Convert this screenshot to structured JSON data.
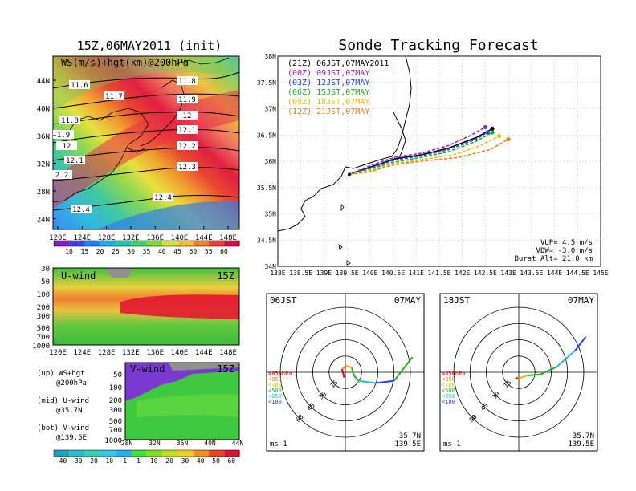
{
  "title_left": "15Z,06MAY2011 (init)",
  "title_right": "Sonde Tracking Forecast",
  "ws_map": {
    "label": "WS(m/s)+hgt(km)@200hPa",
    "lat_labels": [
      "44N",
      "40N",
      "36N",
      "32N",
      "28N",
      "24N"
    ],
    "lon_labels": [
      "120E",
      "124E",
      "128E",
      "132E",
      "136E",
      "140E",
      "144E",
      "148E"
    ],
    "contour_labels": [
      "11.6",
      "11.7",
      "11.8",
      "11.8",
      "11.9",
      "12",
      "12.1",
      "12.2",
      "12.3",
      "12.4",
      "12.3",
      "12.4",
      "1.9",
      "12",
      "12.1",
      "2.2"
    ],
    "colorbar_ticks": [
      "10",
      "15",
      "20",
      "25",
      "30",
      "35",
      "40",
      "45",
      "50",
      "55",
      "60"
    ]
  },
  "u_wind": {
    "label": "U-wind",
    "time": "15Z",
    "y_ticks": [
      "30",
      "50",
      "100",
      "200",
      "300",
      "500",
      "700",
      "1000"
    ],
    "x_ticks": [
      "120E",
      "124E",
      "128E",
      "132E",
      "136E",
      "140E",
      "144E",
      "148E"
    ]
  },
  "v_wind": {
    "label": "V-wind",
    "time": "15Z",
    "y_ticks": [
      "50",
      "100",
      "200",
      "300",
      "500",
      "700",
      "1000"
    ],
    "x_ticks": [
      "28N",
      "32N",
      "36N",
      "40N",
      "44N"
    ]
  },
  "notes": [
    {
      "head": "(up) WS+hgt",
      "sub": "@200hPa"
    },
    {
      "head": "(mid) U-wind",
      "sub": "@35.7N"
    },
    {
      "head": "(bot) V-wind",
      "sub": "@139.5E"
    }
  ],
  "wind_colorbar_ticks": [
    "-40",
    "-30",
    "-20",
    "-10",
    "-1",
    "1",
    "10",
    "20",
    "30",
    "40",
    "50",
    "60"
  ],
  "track": {
    "lat_ticks": [
      "38N",
      "37.5N",
      "37N",
      "36.5N",
      "36N",
      "35.5N",
      "35N",
      "34.5N",
      "34N"
    ],
    "lon_ticks": [
      "138E",
      "138.5E",
      "139E",
      "139.5E",
      "140E",
      "140.5E",
      "141E",
      "141.5E",
      "142E",
      "142.5E",
      "143E",
      "143.5E",
      "144E",
      "144.5E",
      "145E"
    ],
    "legend": [
      {
        "text": "(21Z) 06JST,07MAY2011",
        "color": "#000000"
      },
      {
        "text": "(00Z) 09JST,07MAY",
        "color": "#a020c0"
      },
      {
        "text": "(03Z) 12JST,07MAY",
        "color": "#2040ff"
      },
      {
        "text": "(06Z) 15JST,07MAY",
        "color": "#20b020"
      },
      {
        "text": "(09Z) 18JST,07MAY",
        "color": "#e0c000"
      },
      {
        "text": "(12Z) 21JST,07MAY",
        "color": "#f08020"
      }
    ],
    "stats": [
      "VUP= 4.5 m/s",
      "VDW= -3.0 m/s",
      "Burst Alt= 21.0 km"
    ]
  },
  "hodo_left": {
    "time_label": "06JST",
    "date_label": "07MAY",
    "ring_labels": [
      "15",
      "30",
      "45",
      "60"
    ],
    "levels": [
      {
        "text": "≥850hPa",
        "color": "#e00000"
      },
      {
        "text": "<850",
        "color": "#f08020"
      },
      {
        "text": "<700",
        "color": "#e0c000"
      },
      {
        "text": "<500",
        "color": "#20b020"
      },
      {
        "text": "<250",
        "color": "#20c0c0"
      },
      {
        "text": "<100",
        "color": "#2040ff"
      }
    ],
    "unit": "ms-1",
    "lat": "35.7N",
    "lon": "139.5E"
  },
  "hodo_right": {
    "time_label": "18JST",
    "date_label": "07MAY",
    "ring_labels": [
      "15",
      "30",
      "45",
      "60"
    ],
    "levels": [
      {
        "text": "≥850hPa",
        "color": "#e00000"
      },
      {
        "text": "<850",
        "color": "#f08020"
      },
      {
        "text": "<700",
        "color": "#e0c000"
      },
      {
        "text": "<500",
        "color": "#20b020"
      },
      {
        "text": "<250",
        "color": "#20c0c0"
      },
      {
        "text": "<100",
        "color": "#2040ff"
      }
    ],
    "unit": "ms-1",
    "lat": "35.7N",
    "lon": "139.5E"
  },
  "chart_data": [
    {
      "type": "heatmap",
      "title": "WS(m/s)+hgt(km)@200hPa",
      "xlabel": "",
      "ylabel": "",
      "xlim": [
        120,
        150
      ],
      "ylim": [
        22,
        47
      ],
      "colorbar": [
        10,
        15,
        20,
        25,
        30,
        35,
        40,
        45,
        50,
        55,
        60
      ]
    },
    {
      "type": "line",
      "title": "Sonde Tracking Forecast",
      "xlim": [
        138,
        145
      ],
      "ylim": [
        34,
        38
      ],
      "series": [
        {
          "name": "(21Z) 06JST,07MAY2011",
          "x": [
            139.55,
            140.05,
            140.55,
            141.1,
            141.7,
            142.3,
            142.65
          ],
          "y": [
            35.75,
            35.9,
            36.05,
            36.12,
            36.25,
            36.45,
            36.62
          ]
        },
        {
          "name": "(00Z) 09JST,07MAY",
          "x": [
            139.55,
            140.1,
            140.55,
            141.1,
            141.7,
            142.2,
            142.5
          ],
          "y": [
            35.75,
            35.95,
            36.08,
            36.15,
            36.3,
            36.5,
            36.65
          ]
        },
        {
          "name": "(03Z) 12JST,07MAY",
          "x": [
            139.55,
            140.1,
            140.55,
            141.1,
            141.7,
            142.3,
            142.55
          ],
          "y": [
            35.75,
            35.9,
            36.03,
            36.1,
            36.22,
            36.42,
            36.55
          ]
        },
        {
          "name": "(06Z) 15JST,07MAY",
          "x": [
            139.55,
            140.0,
            140.5,
            141.1,
            141.7,
            142.3,
            142.65
          ],
          "y": [
            35.75,
            35.85,
            35.98,
            36.07,
            36.18,
            36.38,
            36.55
          ]
        },
        {
          "name": "(09Z) 18JST,07MAY",
          "x": [
            139.55,
            140.0,
            140.5,
            141.1,
            141.8,
            142.4,
            142.8
          ],
          "y": [
            35.75,
            35.82,
            35.95,
            36.03,
            36.12,
            36.3,
            36.48
          ]
        },
        {
          "name": "(12Z) 21JST,07MAY",
          "x": [
            139.55,
            140.0,
            140.5,
            141.1,
            141.9,
            142.6,
            143.0
          ],
          "y": [
            35.75,
            35.8,
            35.93,
            36.0,
            36.07,
            36.22,
            36.42
          ]
        }
      ]
    },
    {
      "type": "line",
      "title": "06JST 07MAY",
      "xlim": [
        -60,
        60
      ],
      "ylim": [
        -60,
        60
      ],
      "series": [
        {
          "name": "hodograph 06JST",
          "x": [
            -1,
            -3,
            2,
            6,
            8,
            12,
            28,
            45,
            55,
            62
          ],
          "y": [
            -5,
            3,
            6,
            4,
            -3,
            -8,
            -10,
            -8,
            5,
            14
          ]
        }
      ]
    },
    {
      "type": "line",
      "title": "18JST 07MAY",
      "xlim": [
        -60,
        60
      ],
      "ylim": [
        -60,
        60
      ],
      "series": [
        {
          "name": "hodograph 18JST",
          "x": [
            -3,
            -1,
            2,
            8,
            20,
            35,
            52,
            62
          ],
          "y": [
            -6,
            -5,
            -5,
            -3,
            -2,
            5,
            20,
            33
          ]
        }
      ]
    }
  ]
}
